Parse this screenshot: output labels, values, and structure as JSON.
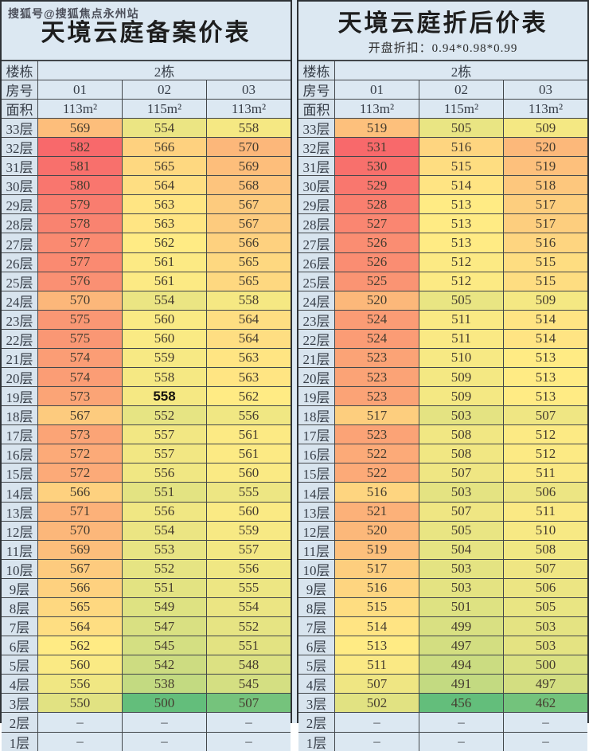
{
  "watermark": "搜狐号@搜狐焦点永州站",
  "colors": {
    "scale_min_green": "#63BE7B",
    "scale_mid_yellow": "#FFEB84",
    "scale_max_red": "#F8696B",
    "page_bg": "#dce8f2",
    "label_bg": "#d8e4ee",
    "border": "#43474b",
    "number_text": "#463d30",
    "label_text": "#363d47"
  },
  "dash": "–",
  "tables": [
    {
      "id": "filing-price-table",
      "title": "天境云庭备案价表",
      "subtitle": "",
      "building_label": "楼栋",
      "building_value": "2栋",
      "room_label": "房号",
      "rooms": [
        "01",
        "02",
        "03"
      ],
      "area_label": "面积",
      "areas": [
        "113m²",
        "115m²",
        "113m²"
      ],
      "floor_suffix": "层",
      "floors": [
        33,
        32,
        31,
        30,
        29,
        28,
        27,
        26,
        25,
        24,
        23,
        22,
        21,
        20,
        19,
        18,
        17,
        16,
        15,
        14,
        13,
        12,
        11,
        10,
        9,
        8,
        7,
        6,
        5,
        4,
        3,
        2,
        1
      ],
      "bold_cell": {
        "floor": 19,
        "col": 1
      },
      "rows": [
        [
          569,
          554,
          558
        ],
        [
          582,
          566,
          570
        ],
        [
          581,
          565,
          569
        ],
        [
          580,
          564,
          568
        ],
        [
          579,
          563,
          567
        ],
        [
          578,
          563,
          567
        ],
        [
          577,
          562,
          566
        ],
        [
          577,
          561,
          565
        ],
        [
          576,
          561,
          565
        ],
        [
          570,
          554,
          558
        ],
        [
          575,
          560,
          564
        ],
        [
          575,
          560,
          564
        ],
        [
          574,
          559,
          563
        ],
        [
          574,
          558,
          563
        ],
        [
          573,
          558,
          562
        ],
        [
          567,
          552,
          556
        ],
        [
          573,
          557,
          561
        ],
        [
          572,
          557,
          561
        ],
        [
          572,
          556,
          560
        ],
        [
          566,
          551,
          555
        ],
        [
          571,
          556,
          560
        ],
        [
          570,
          554,
          559
        ],
        [
          569,
          553,
          557
        ],
        [
          567,
          552,
          556
        ],
        [
          566,
          551,
          555
        ],
        [
          565,
          549,
          554
        ],
        [
          564,
          547,
          552
        ],
        [
          562,
          545,
          551
        ],
        [
          560,
          542,
          548
        ],
        [
          556,
          538,
          545
        ],
        [
          550,
          500,
          507
        ],
        [
          null,
          null,
          null
        ],
        [
          null,
          null,
          null
        ]
      ]
    },
    {
      "id": "discounted-price-table",
      "title": "天境云庭折后价表",
      "subtitle": "开盘折扣：0.94*0.98*0.99",
      "building_label": "楼栋",
      "building_value": "2栋",
      "room_label": "房号",
      "rooms": [
        "01",
        "02",
        "03"
      ],
      "area_label": "面积",
      "areas": [
        "113m²",
        "115m²",
        "113m²"
      ],
      "floor_suffix": "层",
      "floors": [
        33,
        32,
        31,
        30,
        29,
        28,
        27,
        26,
        25,
        24,
        23,
        22,
        21,
        20,
        19,
        18,
        17,
        16,
        15,
        14,
        13,
        12,
        11,
        10,
        9,
        8,
        7,
        6,
        5,
        4,
        3,
        2,
        1
      ],
      "bold_cell": null,
      "rows": [
        [
          519,
          505,
          509
        ],
        [
          531,
          516,
          520
        ],
        [
          530,
          515,
          519
        ],
        [
          529,
          514,
          518
        ],
        [
          528,
          513,
          517
        ],
        [
          527,
          513,
          517
        ],
        [
          526,
          513,
          516
        ],
        [
          526,
          512,
          515
        ],
        [
          525,
          512,
          515
        ],
        [
          520,
          505,
          509
        ],
        [
          524,
          511,
          514
        ],
        [
          524,
          511,
          514
        ],
        [
          523,
          510,
          513
        ],
        [
          523,
          509,
          513
        ],
        [
          523,
          509,
          513
        ],
        [
          517,
          503,
          507
        ],
        [
          523,
          508,
          512
        ],
        [
          522,
          508,
          512
        ],
        [
          522,
          507,
          511
        ],
        [
          516,
          503,
          506
        ],
        [
          521,
          507,
          511
        ],
        [
          520,
          505,
          510
        ],
        [
          519,
          504,
          508
        ],
        [
          517,
          503,
          507
        ],
        [
          516,
          503,
          506
        ],
        [
          515,
          501,
          505
        ],
        [
          514,
          499,
          503
        ],
        [
          513,
          497,
          503
        ],
        [
          511,
          494,
          500
        ],
        [
          507,
          491,
          497
        ],
        [
          502,
          456,
          462
        ],
        [
          null,
          null,
          null
        ],
        [
          null,
          null,
          null
        ]
      ]
    }
  ]
}
